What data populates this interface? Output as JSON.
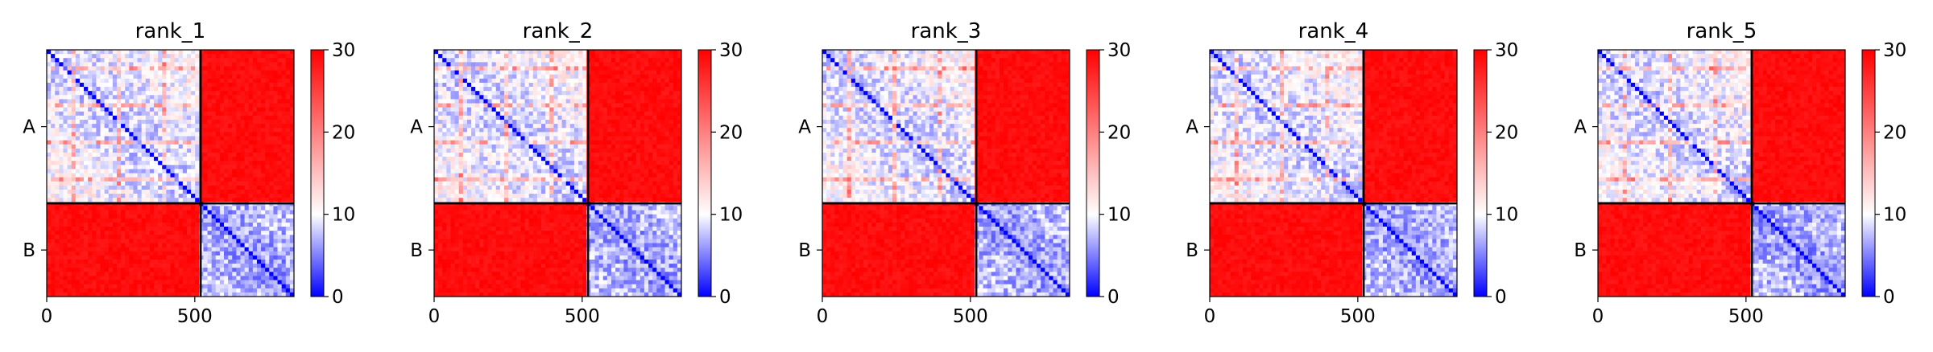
{
  "chart_data": [
    {
      "type": "heatmap",
      "title": "rank_1",
      "chains": [
        "A",
        "B"
      ],
      "chain_lengths": [
        520,
        315
      ],
      "xticks": [
        0,
        500
      ],
      "colorbar": {
        "min": 0,
        "max": 30,
        "ticks": [
          0,
          10,
          20,
          30
        ],
        "colors": [
          "#0000ff",
          "#ffffff",
          "#ff0000"
        ]
      },
      "blocks": [
        [
          8,
          30
        ],
        [
          30,
          6
        ]
      ]
    },
    {
      "type": "heatmap",
      "title": "rank_2",
      "chains": [
        "A",
        "B"
      ],
      "chain_lengths": [
        520,
        315
      ],
      "xticks": [
        0,
        500
      ],
      "colorbar": {
        "min": 0,
        "max": 30,
        "ticks": [
          0,
          10,
          20,
          30
        ],
        "colors": [
          "#0000ff",
          "#ffffff",
          "#ff0000"
        ]
      },
      "blocks": [
        [
          8,
          30
        ],
        [
          30,
          6
        ]
      ]
    },
    {
      "type": "heatmap",
      "title": "rank_3",
      "chains": [
        "A",
        "B"
      ],
      "chain_lengths": [
        520,
        315
      ],
      "xticks": [
        0,
        500
      ],
      "colorbar": {
        "min": 0,
        "max": 30,
        "ticks": [
          0,
          10,
          20,
          30
        ],
        "colors": [
          "#0000ff",
          "#ffffff",
          "#ff0000"
        ]
      },
      "blocks": [
        [
          8,
          30
        ],
        [
          30,
          6
        ]
      ]
    },
    {
      "type": "heatmap",
      "title": "rank_4",
      "chains": [
        "A",
        "B"
      ],
      "chain_lengths": [
        520,
        315
      ],
      "xticks": [
        0,
        500
      ],
      "colorbar": {
        "min": 0,
        "max": 30,
        "ticks": [
          0,
          10,
          20,
          30
        ],
        "colors": [
          "#0000ff",
          "#ffffff",
          "#ff0000"
        ]
      },
      "blocks": [
        [
          8,
          30
        ],
        [
          30,
          6
        ]
      ]
    },
    {
      "type": "heatmap",
      "title": "rank_5",
      "chains": [
        "A",
        "B"
      ],
      "chain_lengths": [
        520,
        315
      ],
      "xticks": [
        0,
        500
      ],
      "colorbar": {
        "min": 0,
        "max": 30,
        "ticks": [
          0,
          10,
          20,
          30
        ],
        "colors": [
          "#0000ff",
          "#ffffff",
          "#ff0000"
        ]
      },
      "blocks": [
        [
          8,
          30
        ],
        [
          30,
          6
        ]
      ]
    }
  ]
}
